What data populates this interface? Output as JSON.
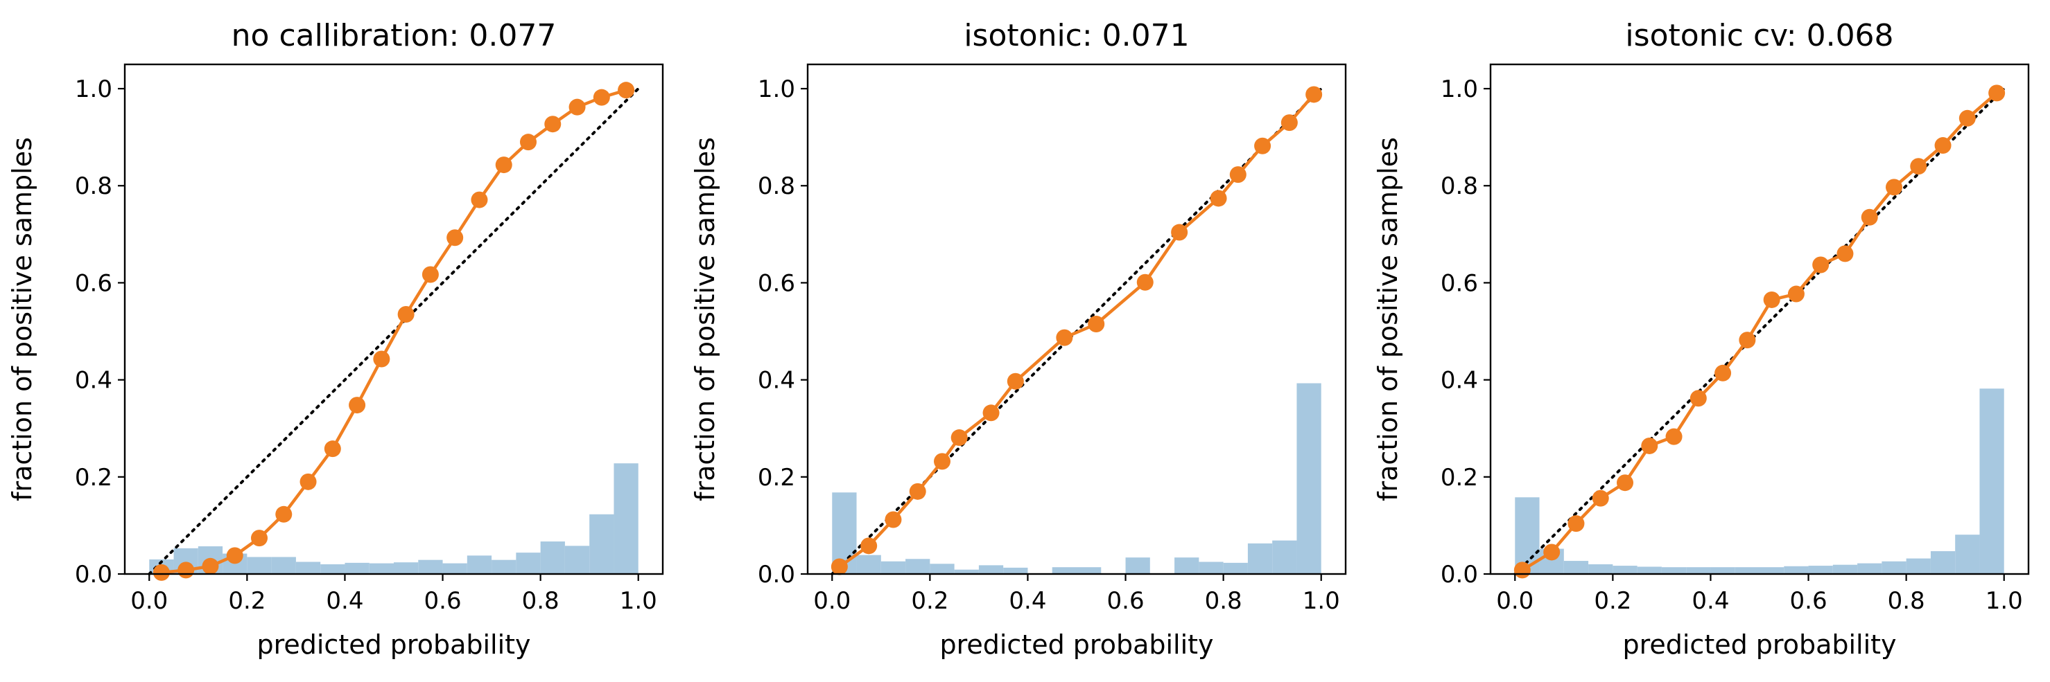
{
  "figure": {
    "background": "#ffffff"
  },
  "styles": {
    "curve_color": "#f07f21",
    "hist_color": "#a7c8e0",
    "diagonal_color": "#000000"
  },
  "chart_data": [
    {
      "type": "line",
      "title": "no callibration: 0.077",
      "xlabel": "predicted probability",
      "ylabel": "fraction of positive samples",
      "xlim": [
        -0.05,
        1.05
      ],
      "ylim": [
        0.0,
        1.05
      ],
      "xticks": [
        0.0,
        0.2,
        0.4,
        0.6,
        0.8,
        1.0
      ],
      "yticks": [
        0.0,
        0.2,
        0.4,
        0.6,
        0.8,
        1.0
      ],
      "diagonal": {
        "style": "dotted",
        "from": [
          0,
          0
        ],
        "to": [
          1,
          1
        ]
      },
      "series": [
        {
          "name": "calibration curve",
          "x": [
            0.025,
            0.075,
            0.125,
            0.175,
            0.225,
            0.275,
            0.325,
            0.375,
            0.425,
            0.475,
            0.525,
            0.575,
            0.625,
            0.675,
            0.725,
            0.775,
            0.825,
            0.875,
            0.925,
            0.975
          ],
          "y": [
            0.003,
            0.008,
            0.016,
            0.038,
            0.074,
            0.123,
            0.19,
            0.258,
            0.348,
            0.443,
            0.535,
            0.617,
            0.693,
            0.771,
            0.843,
            0.89,
            0.927,
            0.962,
            0.982,
            0.997
          ]
        }
      ],
      "histogram": {
        "bin_width": 0.05,
        "bin_starts": [
          0.0,
          0.05,
          0.1,
          0.15,
          0.2,
          0.25,
          0.3,
          0.35,
          0.4,
          0.45,
          0.5,
          0.55,
          0.6,
          0.65,
          0.7,
          0.75,
          0.8,
          0.85,
          0.9,
          0.95
        ],
        "values": [
          0.03,
          0.053,
          0.057,
          0.042,
          0.035,
          0.035,
          0.025,
          0.02,
          0.023,
          0.022,
          0.024,
          0.029,
          0.022,
          0.038,
          0.029,
          0.044,
          0.067,
          0.058,
          0.123,
          0.228
        ]
      }
    },
    {
      "type": "line",
      "title": "isotonic: 0.071",
      "xlabel": "predicted probability",
      "ylabel": "fraction of positive samples",
      "xlim": [
        -0.05,
        1.05
      ],
      "ylim": [
        0.0,
        1.05
      ],
      "xticks": [
        0.0,
        0.2,
        0.4,
        0.6,
        0.8,
        1.0
      ],
      "yticks": [
        0.0,
        0.2,
        0.4,
        0.6,
        0.8,
        1.0
      ],
      "diagonal": {
        "style": "dotted",
        "from": [
          0,
          0
        ],
        "to": [
          1,
          1
        ]
      },
      "series": [
        {
          "name": "calibration curve",
          "x": [
            0.015,
            0.075,
            0.125,
            0.175,
            0.225,
            0.26,
            0.325,
            0.375,
            0.475,
            0.54,
            0.64,
            0.71,
            0.79,
            0.83,
            0.88,
            0.935,
            0.985
          ],
          "y": [
            0.015,
            0.058,
            0.112,
            0.17,
            0.232,
            0.281,
            0.332,
            0.397,
            0.487,
            0.515,
            0.601,
            0.704,
            0.774,
            0.823,
            0.882,
            0.93,
            0.988
          ]
        }
      ],
      "histogram": {
        "bin_width": 0.05,
        "bin_starts": [
          0.0,
          0.05,
          0.1,
          0.15,
          0.2,
          0.25,
          0.3,
          0.35,
          0.4,
          0.45,
          0.5,
          0.55,
          0.6,
          0.65,
          0.7,
          0.75,
          0.8,
          0.85,
          0.9,
          0.95
        ],
        "values": [
          0.168,
          0.039,
          0.026,
          0.031,
          0.021,
          0.009,
          0.018,
          0.013,
          0.0,
          0.014,
          0.014,
          0.0,
          0.034,
          0.0,
          0.034,
          0.025,
          0.023,
          0.063,
          0.069,
          0.393
        ]
      }
    },
    {
      "type": "line",
      "title": "isotonic cv: 0.068",
      "xlabel": "predicted probability",
      "ylabel": "fraction of positive samples",
      "xlim": [
        -0.05,
        1.05
      ],
      "ylim": [
        0.0,
        1.05
      ],
      "xticks": [
        0.0,
        0.2,
        0.4,
        0.6,
        0.8,
        1.0
      ],
      "yticks": [
        0.0,
        0.2,
        0.4,
        0.6,
        0.8,
        1.0
      ],
      "diagonal": {
        "style": "dotted",
        "from": [
          0,
          0
        ],
        "to": [
          1,
          1
        ]
      },
      "series": [
        {
          "name": "calibration curve",
          "x": [
            0.015,
            0.075,
            0.125,
            0.175,
            0.225,
            0.275,
            0.325,
            0.375,
            0.425,
            0.475,
            0.525,
            0.575,
            0.625,
            0.675,
            0.725,
            0.775,
            0.825,
            0.875,
            0.925,
            0.985
          ],
          "y": [
            0.008,
            0.045,
            0.104,
            0.156,
            0.188,
            0.264,
            0.283,
            0.362,
            0.414,
            0.482,
            0.565,
            0.577,
            0.637,
            0.66,
            0.735,
            0.797,
            0.84,
            0.883,
            0.939,
            0.991
          ]
        }
      ],
      "histogram": {
        "bin_width": 0.05,
        "bin_starts": [
          0.0,
          0.05,
          0.1,
          0.15,
          0.2,
          0.25,
          0.3,
          0.35,
          0.4,
          0.45,
          0.5,
          0.55,
          0.6,
          0.65,
          0.7,
          0.75,
          0.8,
          0.85,
          0.9,
          0.95
        ],
        "values": [
          0.158,
          0.052,
          0.027,
          0.02,
          0.017,
          0.015,
          0.014,
          0.014,
          0.014,
          0.014,
          0.014,
          0.016,
          0.017,
          0.019,
          0.022,
          0.026,
          0.032,
          0.047,
          0.081,
          0.382
        ]
      }
    }
  ]
}
